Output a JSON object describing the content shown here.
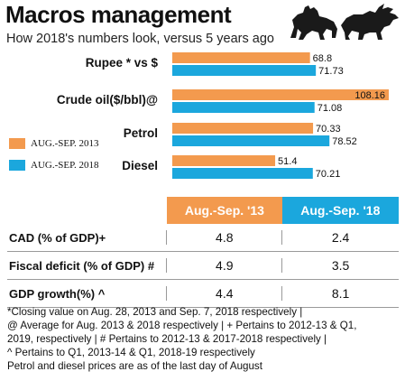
{
  "title": "Macros management",
  "subtitle": "How 2018's numbers look, versus 5 years ago",
  "colors": {
    "series_2013": "#f39a4e",
    "series_2018": "#1ba7dd",
    "rule": "#9a9a9a"
  },
  "icons": [
    "bull-icon",
    "bear-icon"
  ],
  "chart_data": {
    "type": "bar",
    "orientation": "horizontal",
    "categories": [
      "Rupee * vs $",
      "Crude oil($/bbl)@",
      "Petrol",
      "Diesel"
    ],
    "series": [
      {
        "name": "AUG.-SEP. 2013",
        "values": [
          68.8,
          108.16,
          70.33,
          51.4
        ]
      },
      {
        "name": "AUG.-SEP. 2018",
        "values": [
          71.73,
          71.08,
          78.52,
          70.21
        ]
      }
    ],
    "value_labels": [
      [
        "68.8",
        "108.16",
        "70.33",
        "51.4"
      ],
      [
        "71.73",
        "71.08",
        "78.52",
        "70.21"
      ]
    ],
    "xlim": [
      0,
      108.16
    ],
    "grid": false,
    "legend_position": "left"
  },
  "table": {
    "headers": [
      "Aug.-Sep. '13",
      "Aug.-Sep. '18"
    ],
    "rows": [
      {
        "label": "CAD (% of GDP)+",
        "v2013": "4.8",
        "v2018": "2.4"
      },
      {
        "label": "Fiscal deficit (% of GDP) #",
        "v2013": "4.9",
        "v2018": "3.5"
      },
      {
        "label": "GDP growth(%) ^",
        "v2013": "4.4",
        "v2018": "8.1"
      }
    ]
  },
  "notes": [
    "*Closing value on Aug. 28, 2013 and Sep. 7, 2018 respectively |",
    "@ Average for Aug. 2013 & 2018 respectively | + Pertains to 2012-13 & Q1,",
    "2019, respectively | # Pertains to 2012-13 & 2017-2018 respectively |",
    "^ Pertains to Q1, 2013-14 & Q1, 2018-19 respectively",
    "Petrol and diesel prices are as of the last day of August"
  ]
}
